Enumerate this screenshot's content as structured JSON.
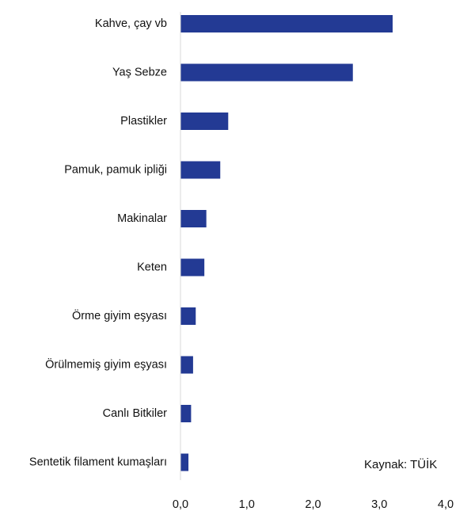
{
  "chart_data": {
    "type": "bar",
    "orientation": "horizontal",
    "categories": [
      "Kahve, çay vb",
      "Yaş Sebze",
      "Plastikler",
      "Pamuk, pamuk ipliği",
      "Makinalar",
      "Keten",
      "Örme giyim eşyası",
      "Örülmemiş giyim eşyası",
      "Canlı Bitkiler",
      "Sentetik filament kumaşları"
    ],
    "values": [
      3.2,
      2.6,
      0.72,
      0.6,
      0.39,
      0.36,
      0.23,
      0.19,
      0.16,
      0.12
    ],
    "xlim": [
      0,
      4
    ],
    "xticks": [
      0,
      1,
      2,
      3,
      4
    ],
    "xtick_labels": [
      "0,0",
      "1,0",
      "2,0",
      "3,0",
      "4,0"
    ],
    "grid": false,
    "legend": "none",
    "bar_color": "#233a94",
    "axis_color": "#d9d9d9"
  },
  "source_note": "Kaynak: TÜİK"
}
